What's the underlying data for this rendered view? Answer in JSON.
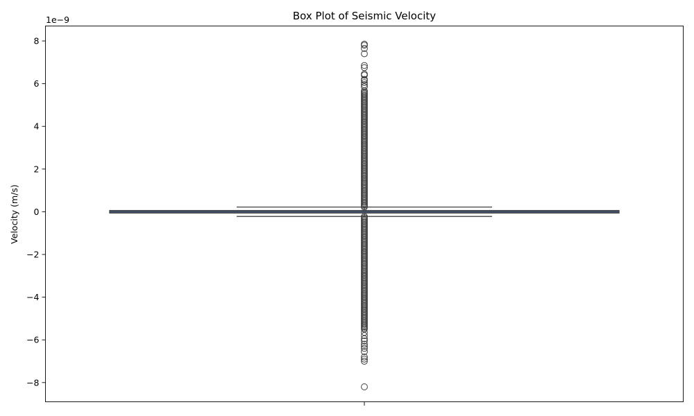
{
  "chart_data": {
    "type": "box",
    "title": "Box Plot of Seismic Velocity",
    "xlabel": "",
    "ylabel": "Velocity (m/s)",
    "y_offset_label": "1e−9",
    "ylim": [
      -8.9,
      8.7
    ],
    "yticks": [
      -8,
      -6,
      -4,
      -2,
      0,
      2,
      4,
      6,
      8
    ],
    "ytick_labels": [
      "−8",
      "−6",
      "−4",
      "−2",
      "0",
      "2",
      "4",
      "6",
      "8"
    ],
    "grid": false,
    "box": {
      "median": 0.0,
      "q1": -0.06,
      "q3": 0.06,
      "whisker_low": -0.22,
      "whisker_high": 0.22,
      "color": "#4c72b0",
      "edge_color": "#3f3f3f"
    },
    "outlier_band_positive": [
      0.22,
      5.7
    ],
    "outlier_band_negative": [
      -5.5,
      -0.22
    ],
    "outliers_sparse": [
      7.85,
      7.8,
      7.65,
      7.4,
      6.85,
      6.75,
      6.45,
      6.4,
      6.2,
      6.15,
      6.05,
      5.95,
      5.85,
      -5.65,
      -5.8,
      -5.95,
      -6.05,
      -6.2,
      -6.3,
      -6.4,
      -6.55,
      -6.8,
      -6.9,
      -7.0,
      -8.2
    ]
  }
}
